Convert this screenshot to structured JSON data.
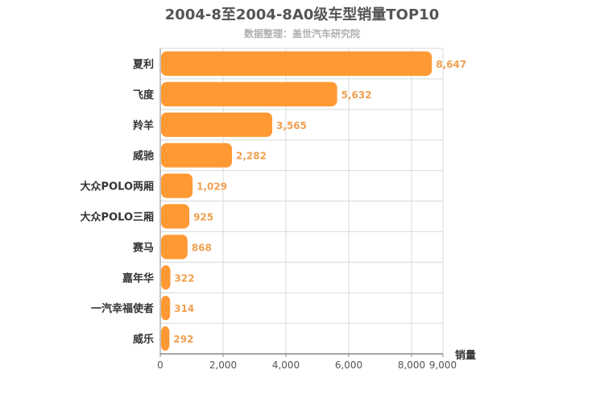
{
  "title": "2004-8至2004-8A0级车型销量TOP10",
  "subtitle": "数据整理：盖世汽车研究院",
  "colors": {
    "bar": "#ff9933",
    "value_label": "#f0a050",
    "grid": "#d9d9d9",
    "axis": "#888888"
  },
  "chart_data": {
    "type": "bar",
    "orientation": "horizontal",
    "title": "2004-8至2004-8A0级车型销量TOP10",
    "subtitle": "数据整理：盖世汽车研究院",
    "xlabel": "销量",
    "ylabel": "",
    "categories": [
      "夏利",
      "飞度",
      "羚羊",
      "威驰",
      "大众POLO两厢",
      "大众POLO三厢",
      "赛马",
      "嘉年华",
      "一汽幸福使者",
      "威乐"
    ],
    "values": [
      8647,
      5632,
      3565,
      2282,
      1029,
      925,
      868,
      322,
      314,
      292
    ],
    "value_labels": [
      "8,647",
      "5,632",
      "3,565",
      "2,282",
      "1,029",
      "925",
      "868",
      "322",
      "314",
      "292"
    ],
    "xlim": [
      0,
      9000
    ],
    "ticks": [
      0,
      2000,
      4000,
      6000,
      8000,
      9000
    ],
    "tick_labels": [
      "0",
      "2,000",
      "4,000",
      "6,000",
      "8,000",
      "9,000"
    ],
    "grid": true,
    "legend": "none"
  }
}
